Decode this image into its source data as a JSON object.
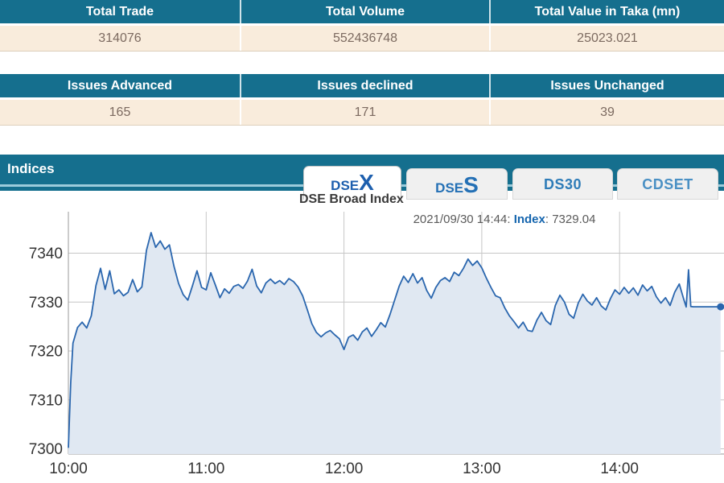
{
  "summary_tables": [
    {
      "headers": [
        "Total Trade",
        "Total Volume",
        "Total Value in Taka (mn)"
      ],
      "values": [
        "314076",
        "552436748",
        "25023.021"
      ]
    },
    {
      "headers": [
        "Issues Advanced",
        "Issues declined",
        "Issues Unchanged"
      ],
      "values": [
        "165",
        "171",
        "39"
      ]
    }
  ],
  "indices": {
    "section_title": "Indices",
    "tabs": [
      {
        "prefix": "DSE",
        "suffix": "X",
        "active": true
      },
      {
        "prefix": "DSE",
        "suffix": "S",
        "active": false
      },
      {
        "prefix": "DS30",
        "suffix": "",
        "active": false
      },
      {
        "prefix": "CDSET",
        "suffix": "",
        "active": false
      }
    ]
  },
  "colors": {
    "header_teal": "#156F8E",
    "row_cream": "#F9ECDC",
    "value_text": "#7C6A60",
    "active_tab_blue": "#1D5FAE",
    "tab_blue": "#2E7CB8",
    "chart_line": "#2A66AE",
    "chart_fill": "#E0E8F2",
    "grid": "#C6C6C6"
  },
  "chart_data": {
    "type": "area",
    "title": "DSE Broad Index",
    "tooltip": {
      "datetime": "2021/09/30 14:44",
      "series_label": "Index",
      "value": "7329.04"
    },
    "x_ticks": [
      "10:00",
      "11:00",
      "12:00",
      "13:00",
      "14:00"
    ],
    "y_ticks": [
      7300,
      7310,
      7320,
      7330,
      7340
    ],
    "ylim": [
      7298.8,
      7348
    ],
    "x_range": [
      "10:00",
      "14:44"
    ],
    "grid": true,
    "legend": false,
    "points": [
      [
        "10:00",
        7300.2
      ],
      [
        "10:01",
        7313.5
      ],
      [
        "10:02",
        7321.6
      ],
      [
        "10:04",
        7324.8
      ],
      [
        "10:06",
        7325.9
      ],
      [
        "10:08",
        7324.7
      ],
      [
        "10:10",
        7327.2
      ],
      [
        "10:12",
        7333.4
      ],
      [
        "10:14",
        7336.9
      ],
      [
        "10:16",
        7332.6
      ],
      [
        "10:18",
        7336.4
      ],
      [
        "10:20",
        7331.7
      ],
      [
        "10:22",
        7332.5
      ],
      [
        "10:24",
        7331.3
      ],
      [
        "10:26",
        7332.0
      ],
      [
        "10:28",
        7334.6
      ],
      [
        "10:30",
        7332.1
      ],
      [
        "10:32",
        7333.1
      ],
      [
        "10:34",
        7340.6
      ],
      [
        "10:36",
        7344.2
      ],
      [
        "10:38",
        7341.2
      ],
      [
        "10:40",
        7342.5
      ],
      [
        "10:42",
        7340.8
      ],
      [
        "10:44",
        7341.7
      ],
      [
        "10:46",
        7337.3
      ],
      [
        "10:48",
        7333.8
      ],
      [
        "10:50",
        7331.5
      ],
      [
        "10:52",
        7330.4
      ],
      [
        "10:54",
        7333.3
      ],
      [
        "10:56",
        7336.4
      ],
      [
        "10:58",
        7333.0
      ],
      [
        "11:00",
        7332.5
      ],
      [
        "11:02",
        7336.0
      ],
      [
        "11:04",
        7333.5
      ],
      [
        "11:06",
        7330.9
      ],
      [
        "11:08",
        7332.7
      ],
      [
        "11:10",
        7331.8
      ],
      [
        "11:12",
        7333.2
      ],
      [
        "11:14",
        7333.6
      ],
      [
        "11:16",
        7332.8
      ],
      [
        "11:18",
        7334.3
      ],
      [
        "11:20",
        7336.7
      ],
      [
        "11:22",
        7333.3
      ],
      [
        "11:24",
        7331.9
      ],
      [
        "11:26",
        7333.9
      ],
      [
        "11:28",
        7334.7
      ],
      [
        "11:30",
        7333.8
      ],
      [
        "11:32",
        7334.4
      ],
      [
        "11:34",
        7333.6
      ],
      [
        "11:36",
        7334.8
      ],
      [
        "11:38",
        7334.2
      ],
      [
        "11:40",
        7333.1
      ],
      [
        "11:42",
        7331.3
      ],
      [
        "11:44",
        7328.5
      ],
      [
        "11:46",
        7325.6
      ],
      [
        "11:48",
        7323.8
      ],
      [
        "11:50",
        7322.9
      ],
      [
        "11:52",
        7323.7
      ],
      [
        "11:54",
        7324.2
      ],
      [
        "11:56",
        7323.3
      ],
      [
        "11:58",
        7322.5
      ],
      [
        "12:00",
        7320.3
      ],
      [
        "12:02",
        7322.8
      ],
      [
        "12:04",
        7323.3
      ],
      [
        "12:06",
        7322.2
      ],
      [
        "12:08",
        7323.9
      ],
      [
        "12:10",
        7324.7
      ],
      [
        "12:12",
        7323.0
      ],
      [
        "12:14",
        7324.3
      ],
      [
        "12:16",
        7325.8
      ],
      [
        "12:18",
        7324.9
      ],
      [
        "12:20",
        7327.4
      ],
      [
        "12:22",
        7330.3
      ],
      [
        "12:24",
        7333.2
      ],
      [
        "12:26",
        7335.3
      ],
      [
        "12:28",
        7334.0
      ],
      [
        "12:30",
        7335.8
      ],
      [
        "12:32",
        7333.9
      ],
      [
        "12:34",
        7335.0
      ],
      [
        "12:36",
        7332.4
      ],
      [
        "12:38",
        7330.8
      ],
      [
        "12:40",
        7333.0
      ],
      [
        "12:42",
        7334.4
      ],
      [
        "12:44",
        7335.0
      ],
      [
        "12:46",
        7334.2
      ],
      [
        "12:48",
        7336.1
      ],
      [
        "12:50",
        7335.4
      ],
      [
        "12:52",
        7336.9
      ],
      [
        "12:54",
        7338.8
      ],
      [
        "12:56",
        7337.5
      ],
      [
        "12:58",
        7338.4
      ],
      [
        "13:00",
        7337.0
      ],
      [
        "13:02",
        7334.9
      ],
      [
        "13:04",
        7333.0
      ],
      [
        "13:06",
        7331.3
      ],
      [
        "13:08",
        7330.9
      ],
      [
        "13:10",
        7328.8
      ],
      [
        "13:12",
        7327.2
      ],
      [
        "13:14",
        7326.0
      ],
      [
        "13:16",
        7324.7
      ],
      [
        "13:18",
        7325.9
      ],
      [
        "13:20",
        7324.2
      ],
      [
        "13:22",
        7324.0
      ],
      [
        "13:24",
        7326.3
      ],
      [
        "13:26",
        7327.9
      ],
      [
        "13:28",
        7326.2
      ],
      [
        "13:30",
        7325.4
      ],
      [
        "13:32",
        7329.3
      ],
      [
        "13:34",
        7331.4
      ],
      [
        "13:36",
        7330.0
      ],
      [
        "13:38",
        7327.5
      ],
      [
        "13:40",
        7326.7
      ],
      [
        "13:42",
        7329.8
      ],
      [
        "13:44",
        7331.6
      ],
      [
        "13:46",
        7330.2
      ],
      [
        "13:48",
        7329.4
      ],
      [
        "13:50",
        7330.9
      ],
      [
        "13:52",
        7329.2
      ],
      [
        "13:54",
        7328.4
      ],
      [
        "13:56",
        7330.7
      ],
      [
        "13:58",
        7332.5
      ],
      [
        "14:00",
        7331.6
      ],
      [
        "14:02",
        7333.0
      ],
      [
        "14:04",
        7331.8
      ],
      [
        "14:06",
        7332.9
      ],
      [
        "14:08",
        7331.4
      ],
      [
        "14:10",
        7333.5
      ],
      [
        "14:12",
        7332.3
      ],
      [
        "14:14",
        7333.2
      ],
      [
        "14:16",
        7331.1
      ],
      [
        "14:18",
        7329.8
      ],
      [
        "14:20",
        7330.9
      ],
      [
        "14:22",
        7329.3
      ],
      [
        "14:24",
        7332.0
      ],
      [
        "14:26",
        7333.7
      ],
      [
        "14:28",
        7330.5
      ],
      [
        "14:29",
        7329.0
      ],
      [
        "14:30",
        7336.6
      ],
      [
        "14:31",
        7329.1
      ],
      [
        "14:32",
        7329.04
      ],
      [
        "14:36",
        7329.04
      ],
      [
        "14:40",
        7329.04
      ],
      [
        "14:44",
        7329.04
      ]
    ]
  }
}
